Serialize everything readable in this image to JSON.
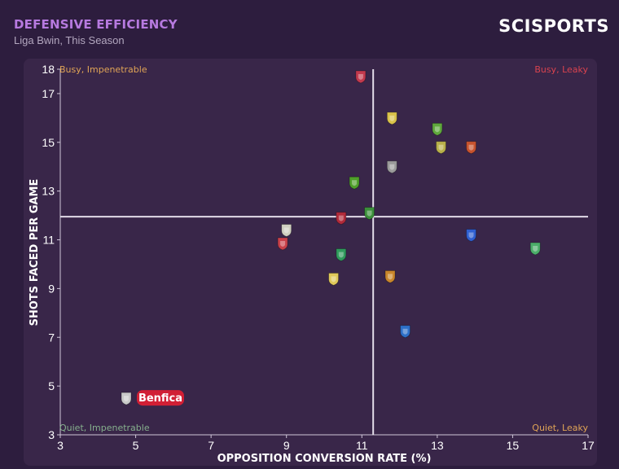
{
  "header": {
    "title": "DEFENSIVE EFFICIENCY",
    "subtitle": "Liga Bwin, This Season",
    "logo": "SCISPORTS"
  },
  "colors": {
    "title": "#b77ae0",
    "highlight_label": "#d11f35",
    "busy_impenetrable": "#e0a456",
    "busy_leaky": "#d9434f",
    "quiet_impenetrable": "#86b08d",
    "quiet_leaky": "#e0a456"
  },
  "chart_data": {
    "type": "scatter",
    "title": "DEFENSIVE EFFICIENCY",
    "subtitle": "Liga Bwin, This Season",
    "xlabel": "OPPOSITION CONVERSION RATE (%)",
    "ylabel": "SHOTS FACED PER GAME",
    "xlim": [
      3,
      17
    ],
    "ylim": [
      3,
      18
    ],
    "xticks": [
      "3",
      "5",
      "7",
      "9",
      "11",
      "13",
      "15",
      "17"
    ],
    "yticks": [
      "3",
      "5",
      "7",
      "9",
      "11",
      "13",
      "15",
      "17",
      "18"
    ],
    "reference_lines": {
      "x": 11.3,
      "y": 11.95
    },
    "quadrant_labels": {
      "top_left": "Busy, Impenetrable",
      "top_right": "Busy, Leaky",
      "bottom_left": "Quiet, Impenetrable",
      "bottom_right": "Quiet, Leaky"
    },
    "points": [
      {
        "x": 10.97,
        "y": 17.7,
        "badge": "#c23a4e"
      },
      {
        "x": 11.8,
        "y": 16.0,
        "badge": "#d9c24a"
      },
      {
        "x": 13.0,
        "y": 15.55,
        "badge": "#5fa83c"
      },
      {
        "x": 13.1,
        "y": 14.8,
        "badge": "#b8b04a"
      },
      {
        "x": 13.9,
        "y": 14.8,
        "badge": "#c7532e"
      },
      {
        "x": 11.8,
        "y": 14.0,
        "badge": "#9a9a9a"
      },
      {
        "x": 10.8,
        "y": 13.35,
        "badge": "#4f9f2a"
      },
      {
        "x": 11.2,
        "y": 12.1,
        "badge": "#3b8f3a"
      },
      {
        "x": 10.45,
        "y": 11.9,
        "badge": "#b02a3a"
      },
      {
        "x": 9.0,
        "y": 11.4,
        "badge": "#d0d0c0"
      },
      {
        "x": 8.9,
        "y": 10.85,
        "badge": "#c8414a"
      },
      {
        "x": 13.9,
        "y": 11.2,
        "badge": "#2f5fd0"
      },
      {
        "x": 15.6,
        "y": 10.65,
        "badge": "#4cae6a"
      },
      {
        "x": 10.45,
        "y": 10.4,
        "badge": "#2f9a5c"
      },
      {
        "x": 10.25,
        "y": 9.4,
        "badge": "#e0c85a"
      },
      {
        "x": 11.75,
        "y": 9.5,
        "badge": "#c8862c"
      },
      {
        "x": 12.15,
        "y": 7.25,
        "badge": "#2d6fc8"
      },
      {
        "x": 4.75,
        "y": 4.5,
        "badge": "#c9c9c9",
        "label": "Benfica"
      }
    ]
  }
}
